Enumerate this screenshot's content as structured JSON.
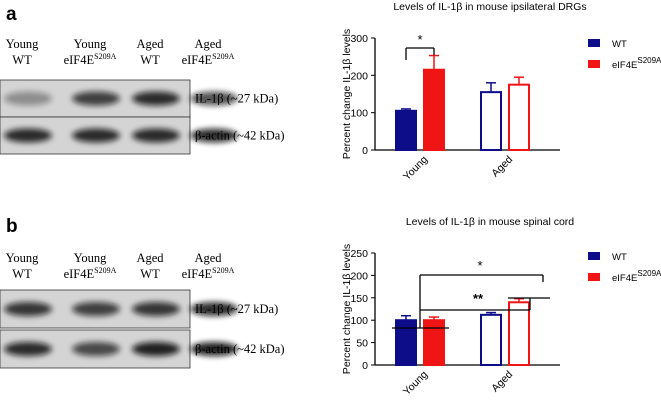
{
  "chart_data": [
    {
      "type": "bar",
      "title": "Levels of IL-1β in mouse ipsilateral DRGs",
      "y_label": "Percent change IL-1β levels",
      "categories": [
        "Young",
        "Aged"
      ],
      "fill_styles": [
        "solid",
        "outline"
      ],
      "series": [
        {
          "name": "WT",
          "color": "#0d0d8a",
          "values": [
            105,
            155
          ],
          "errors": [
            5,
            25
          ]
        },
        {
          "name": "eIF4E",
          "name_sup": "S209A",
          "color": "#f01414",
          "values": [
            215,
            175
          ],
          "errors": [
            38,
            20
          ]
        }
      ],
      "ylim": [
        0,
        300
      ],
      "yticks": [
        0,
        100,
        200,
        300
      ],
      "annotations": [
        "*"
      ]
    },
    {
      "type": "bar",
      "title": "Levels of IL-1β in mouse spinal cord",
      "y_label": "Percent change IL-1β levels",
      "categories": [
        "Young",
        "Aged"
      ],
      "fill_styles": [
        "solid",
        "outline"
      ],
      "series": [
        {
          "name": "WT",
          "color": "#0d0d8a",
          "values": [
            100,
            112
          ],
          "errors": [
            10,
            5
          ]
        },
        {
          "name": "eIF4E",
          "name_sup": "S209A",
          "color": "#f01414",
          "values": [
            100,
            140
          ],
          "errors": [
            7,
            8
          ]
        }
      ],
      "ylim": [
        0,
        250
      ],
      "yticks": [
        0,
        50,
        100,
        150,
        200,
        250
      ],
      "annotations": [
        "*",
        "**"
      ]
    }
  ],
  "blots": [
    {
      "label": "a",
      "lanes": [
        {
          "line1": "Young",
          "line2": "WT"
        },
        {
          "line1": "Young",
          "line2": "eIF4E",
          "sup": "S209A"
        },
        {
          "line1": "Aged",
          "line2": "WT"
        },
        {
          "line1": "Aged",
          "line2": "eIF4E",
          "sup": "S209A"
        }
      ],
      "bands": [
        "IL-1β (~27 kDa)",
        "β-actin (~42 kDa)"
      ]
    },
    {
      "label": "b",
      "lanes": [
        {
          "line1": "Young",
          "line2": "WT"
        },
        {
          "line1": "Young",
          "line2": "eIF4E",
          "sup": "S209A"
        },
        {
          "line1": "Aged",
          "line2": "WT"
        },
        {
          "line1": "Aged",
          "line2": "eIF4E",
          "sup": "S209A"
        }
      ],
      "bands": [
        "IL-1β (~27 kDa)",
        "β-actin (~42 kDa)"
      ]
    }
  ]
}
